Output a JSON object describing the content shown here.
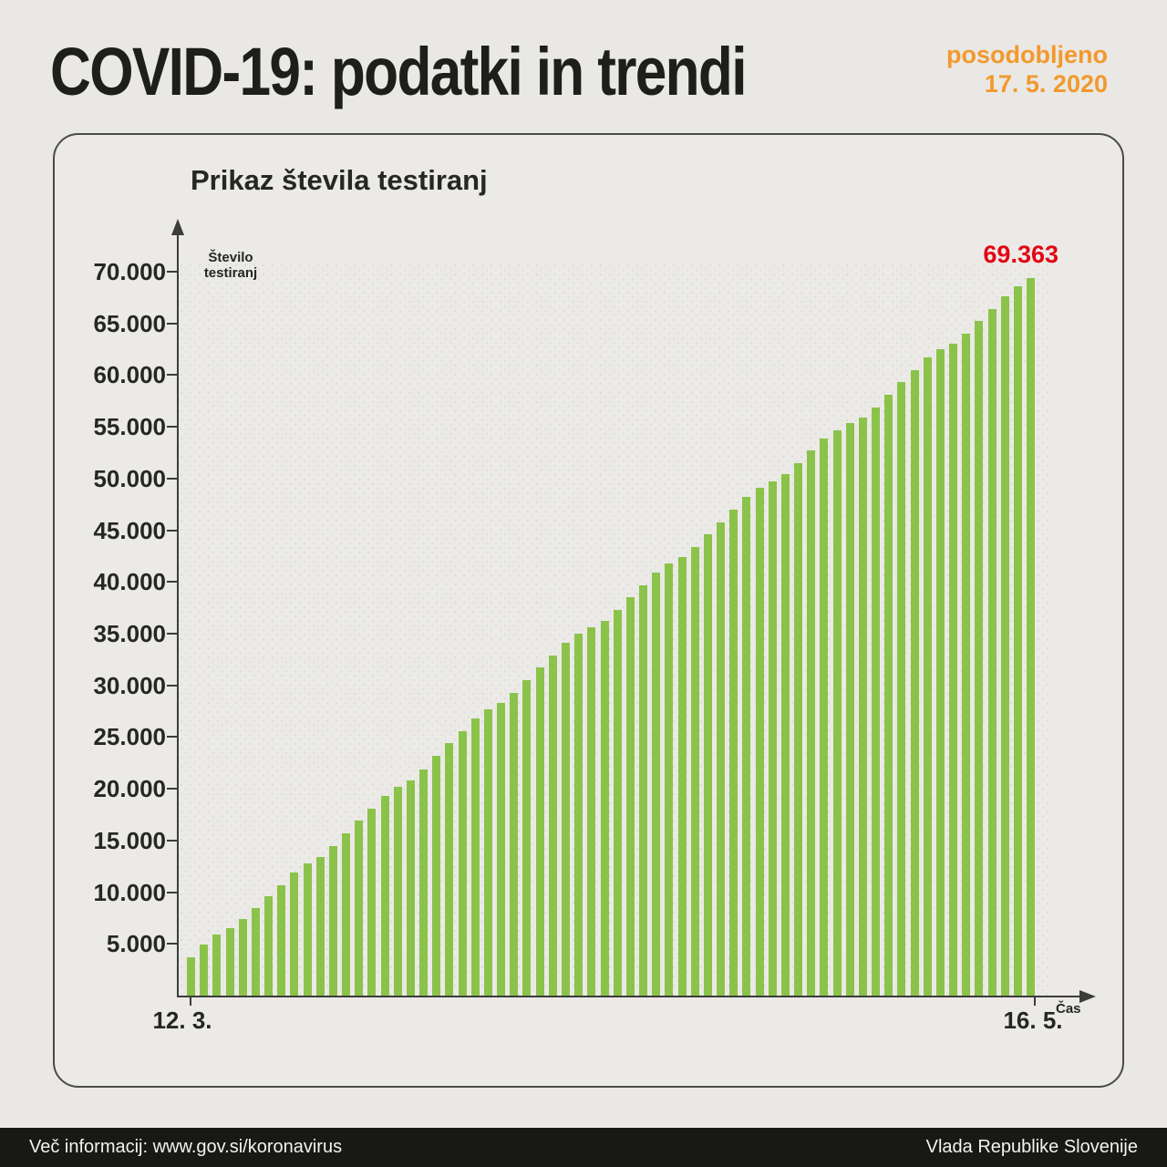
{
  "header": {
    "title": "COVID-19: podatki in trendi",
    "updated_label": "posodobljeno",
    "updated_date": "17. 5. 2020"
  },
  "chart_data": {
    "type": "bar",
    "title": "Prikaz števila testiranj",
    "ylabel": "Število\ntestiranj",
    "xlabel": "Čas",
    "ylim": [
      0,
      70000
    ],
    "grid": "dotted",
    "legend": "none",
    "y_tick_labels": [
      "70.000",
      "65.000",
      "60.000",
      "55.000",
      "50.000",
      "45.000",
      "40.000",
      "35.000",
      "30.000",
      "25.000",
      "20.000",
      "15.000",
      "10.000",
      "5.000"
    ],
    "x_tick_labels": [
      "12. 3.",
      "16. 5."
    ],
    "last_value_label": "69.363",
    "last_value": 69363,
    "x_is_daily_dates": "12 March 2020 to 16 May 2020",
    "values": [
      3700,
      4900,
      5900,
      6500,
      7400,
      8500,
      9600,
      10700,
      11900,
      12800,
      13400,
      14500,
      15700,
      16900,
      18100,
      19300,
      20200,
      20800,
      21900,
      23200,
      24400,
      25600,
      26800,
      27700,
      28300,
      29300,
      30500,
      31700,
      32900,
      34100,
      35000,
      35600,
      36200,
      37300,
      38500,
      39700,
      40900,
      41800,
      42400,
      43400,
      44600,
      45800,
      47000,
      48200,
      49100,
      49700,
      50400,
      51500,
      52700,
      53900,
      54700,
      55400,
      55900,
      56900,
      58100,
      59300,
      60500,
      61700,
      62500,
      63000,
      64000,
      65200,
      66400,
      67600,
      68600,
      69363
    ]
  },
  "footer": {
    "left": "Več informacij: www.gov.si/koronavirus",
    "right": "Vlada Republike Slovenije"
  },
  "colors": {
    "bar_green": "#8bc34a",
    "highlight_red": "#e30613",
    "accent_orange": "#f2992e",
    "footer_bg": "#181816",
    "page_bg": "#e9e8e5",
    "axis": "#3c3c3a"
  }
}
